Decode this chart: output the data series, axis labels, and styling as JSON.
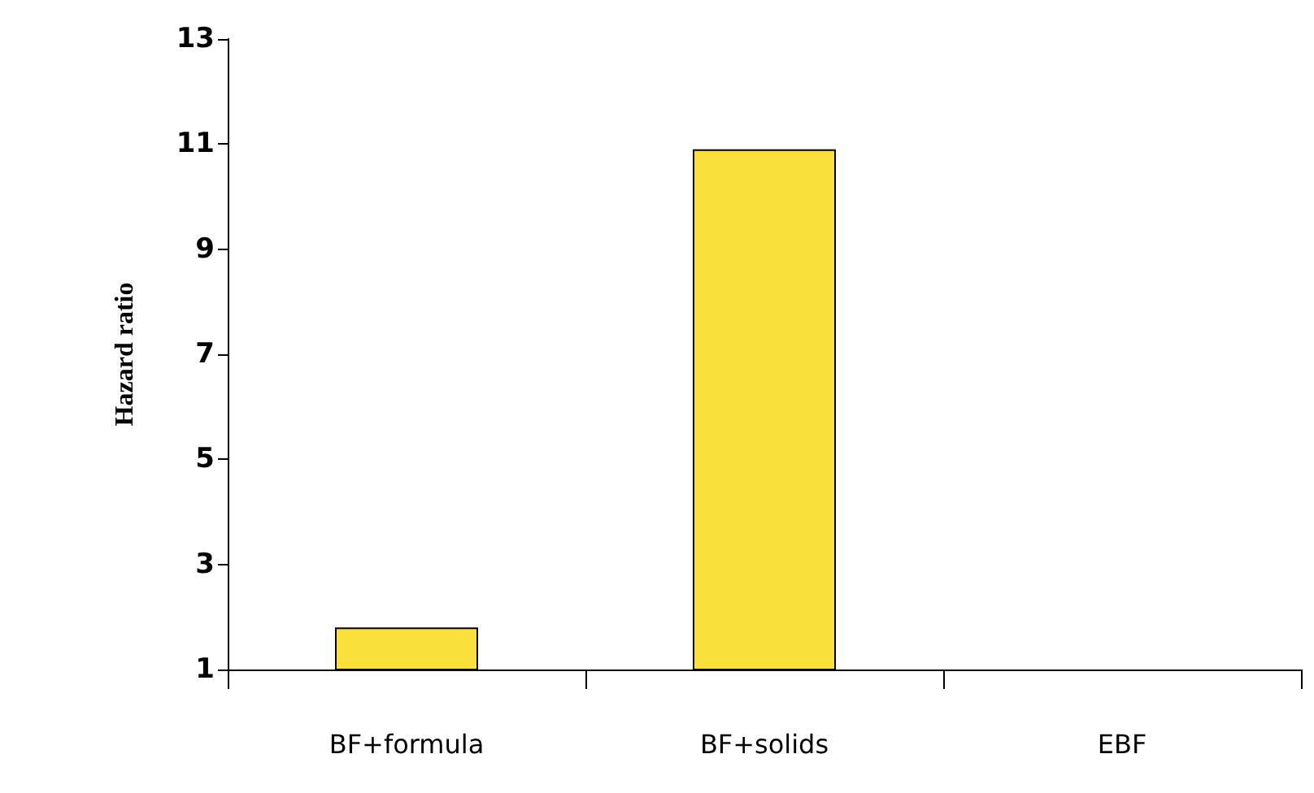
{
  "chart_data": {
    "type": "bar",
    "ylabel": "Hazard ratio",
    "categories": [
      "BF+formula",
      "BF+solids",
      "EBF"
    ],
    "values": [
      1.8,
      10.9,
      1
    ],
    "color": "#f9e03a",
    "ylim": [
      1,
      13
    ],
    "yticks": [
      1,
      3,
      5,
      7,
      9,
      11,
      13
    ]
  }
}
